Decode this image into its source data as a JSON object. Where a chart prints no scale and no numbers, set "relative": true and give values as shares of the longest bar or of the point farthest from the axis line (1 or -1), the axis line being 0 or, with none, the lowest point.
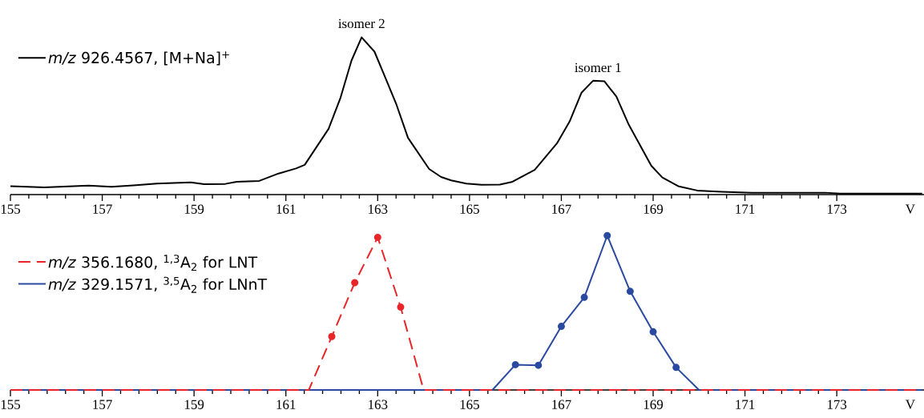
{
  "chart_data": [
    {
      "type": "line",
      "relative": true,
      "xlabel": "V",
      "xlim": [
        155,
        174.9
      ],
      "xticks": [
        155,
        157,
        159,
        161,
        163,
        165,
        167,
        169,
        171,
        173
      ],
      "legend": "top left",
      "annotations": [
        {
          "text": "isomer 2",
          "x": 162.65,
          "y": 1
        },
        {
          "text": "isomer 1",
          "x": 167.8,
          "y": 0.72
        }
      ],
      "series": [
        {
          "name": "*m/z* 926.4567, [M+Na]$^{+}$",
          "color": "#000000",
          "line_style": "solid",
          "marker": "none",
          "x": [
            155.0,
            155.74,
            156.7,
            157.2,
            157.68,
            158.19,
            158.93,
            159.22,
            159.68,
            159.93,
            160.42,
            160.84,
            161.22,
            161.41,
            161.93,
            162.19,
            162.43,
            162.65,
            162.93,
            163.16,
            163.4,
            163.66,
            164.12,
            164.38,
            164.6,
            164.93,
            165.26,
            165.66,
            165.92,
            166.42,
            166.91,
            167.18,
            167.44,
            167.69,
            167.94,
            168.2,
            168.47,
            168.96,
            169.2,
            169.56,
            169.96,
            170.49,
            171.15,
            172.74,
            173.07,
            174.86
          ],
          "values": [
            0.053,
            0.046,
            0.057,
            0.049,
            0.059,
            0.07,
            0.078,
            0.066,
            0.068,
            0.081,
            0.087,
            0.134,
            0.166,
            0.189,
            0.418,
            0.616,
            0.853,
            1,
            0.909,
            0.748,
            0.579,
            0.361,
            0.163,
            0.112,
            0.09,
            0.07,
            0.062,
            0.064,
            0.08,
            0.157,
            0.328,
            0.464,
            0.648,
            0.724,
            0.72,
            0.623,
            0.444,
            0.183,
            0.109,
            0.052,
            0.026,
            0.018,
            0.012,
            0.012,
            0.006,
            0.006
          ]
        }
      ]
    },
    {
      "type": "line",
      "relative": true,
      "xlabel": "V",
      "xlim": [
        155,
        174.9
      ],
      "xticks": [
        155,
        157,
        159,
        161,
        163,
        165,
        167,
        169,
        171,
        173
      ],
      "legend": "top left",
      "series": [
        {
          "name": "*m/z* 356.1680, $^{1,3}$A$_{2}$ for LNT",
          "color": "#e8262a",
          "line_style": "dashed",
          "marker": "circle",
          "x": [
            155,
            161.5,
            162.0,
            162.5,
            163.0,
            163.5,
            164.0,
            174.86
          ],
          "values": [
            0,
            0,
            0.346,
            0.695,
            0.989,
            0.537,
            0,
            0
          ]
        },
        {
          "name": "*m/z* 329.1571, $^{3,5}$A$_{2}$ for LNnT",
          "color": "#2a4aa0",
          "line_style": "solid",
          "marker": "circle",
          "x": [
            155,
            165.5,
            166.0,
            166.5,
            167.0,
            167.5,
            168.0,
            168.5,
            169.0,
            169.5,
            170.0,
            174.86
          ],
          "values": [
            0,
            0,
            0.164,
            0.16,
            0.412,
            0.6,
            1,
            0.639,
            0.377,
            0.146,
            0,
            0
          ]
        }
      ]
    }
  ]
}
